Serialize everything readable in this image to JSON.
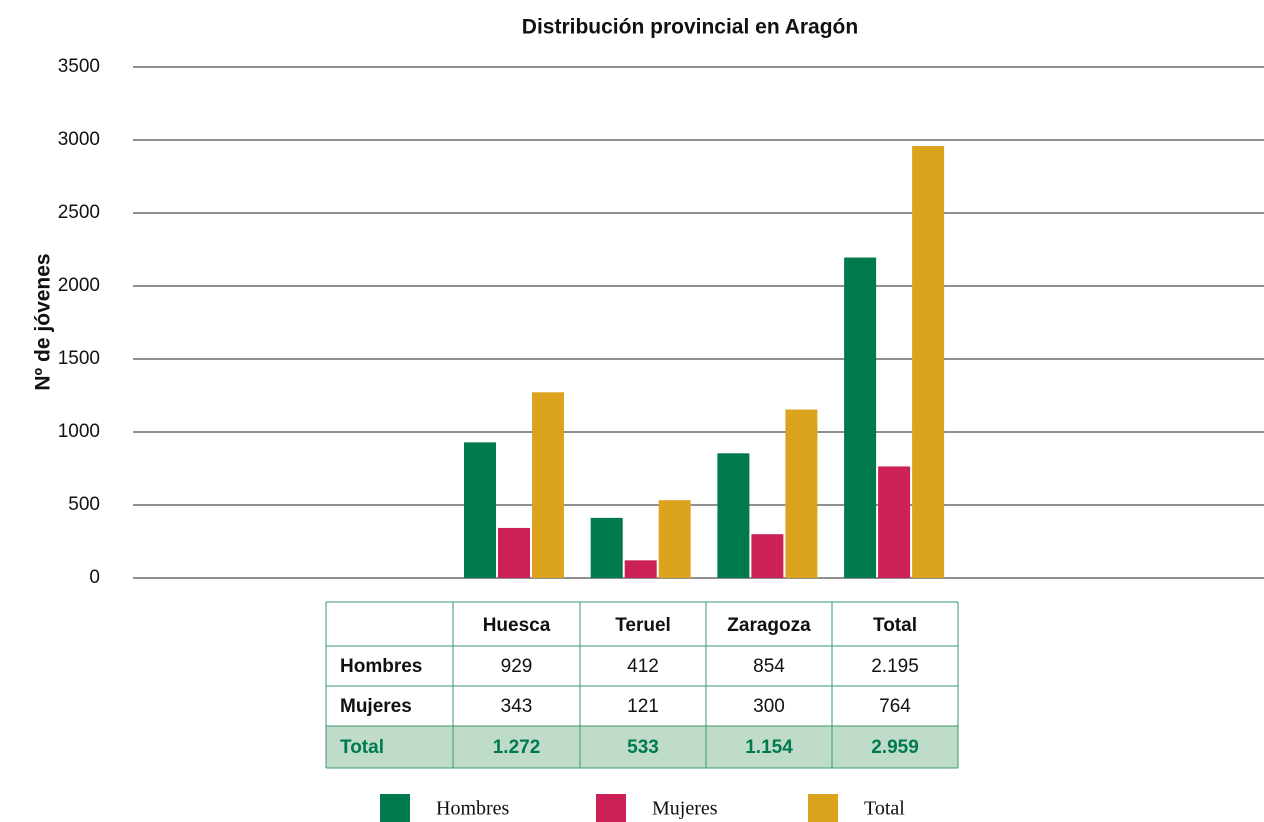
{
  "chart_data": {
    "type": "bar",
    "title": "Distribución provincial en Aragón",
    "y_label": "Nº de jóvenes",
    "categories": [
      "Huesca",
      "Teruel",
      "Zaragoza",
      "Total"
    ],
    "series": [
      {
        "name": "Hombres",
        "color": "#007a4d",
        "values": [
          929,
          412,
          854,
          2195
        ],
        "value_labels": [
          "929",
          "412",
          "854",
          "2.195"
        ]
      },
      {
        "name": "Mujeres",
        "color": "#cc2156",
        "values": [
          343,
          121,
          300,
          764
        ],
        "value_labels": [
          "343",
          "121",
          "300",
          "764"
        ]
      },
      {
        "name": "Total",
        "color": "#dca31f",
        "values": [
          1272,
          533,
          1154,
          2959
        ],
        "value_labels": [
          "1.272",
          "533",
          "1.154",
          "2.959"
        ]
      }
    ],
    "ylim": [
      0,
      3500
    ],
    "yticks": [
      0,
      500,
      1000,
      1500,
      2000,
      2500,
      3000,
      3500
    ],
    "grid": true
  }
}
